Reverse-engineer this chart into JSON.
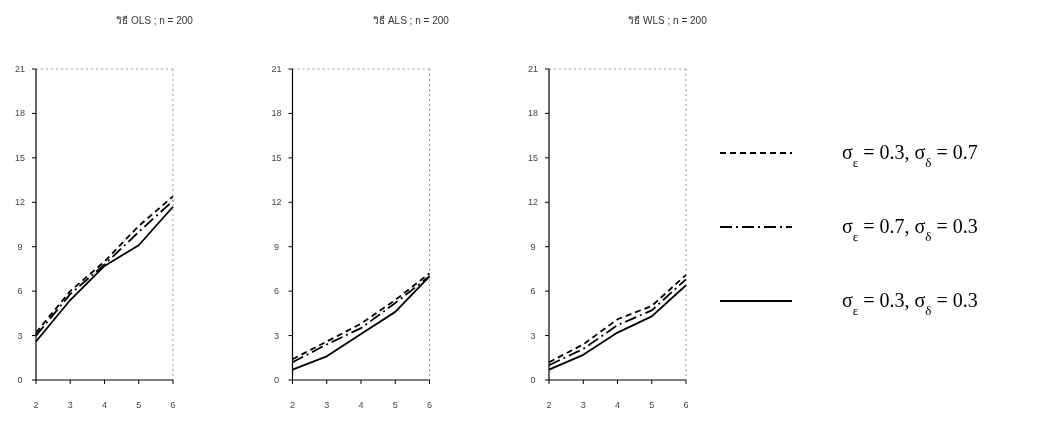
{
  "chart_data": [
    {
      "type": "line",
      "title": "วิธี OLS ; n = 200",
      "x": [
        2,
        3,
        4,
        5,
        6
      ],
      "xlim": [
        2,
        6
      ],
      "xticks": [
        2,
        3,
        4,
        5,
        6
      ],
      "ylim": [
        0,
        21
      ],
      "yticks": [
        0,
        3,
        6,
        9,
        12,
        15,
        18,
        21
      ],
      "legend": false,
      "series": [
        {
          "color": "#000000",
          "line_style": "dashed",
          "values": [
            3.2,
            6.0,
            8.0,
            10.4,
            12.4
          ]
        },
        {
          "color": "#000000",
          "line_style": "dashdot",
          "values": [
            3.0,
            5.8,
            7.8,
            10.0,
            12.1
          ]
        },
        {
          "color": "#000000",
          "line_style": "solid",
          "values": [
            2.6,
            5.4,
            7.7,
            9.1,
            11.7
          ]
        }
      ]
    },
    {
      "type": "line",
      "title": "วิธี ALS ; n = 200",
      "x": [
        2,
        3,
        4,
        5,
        6
      ],
      "xlim": [
        2,
        6
      ],
      "xticks": [
        2,
        3,
        4,
        5,
        6
      ],
      "ylim": [
        0,
        21
      ],
      "yticks": [
        0,
        3,
        6,
        9,
        12,
        15,
        18,
        21
      ],
      "legend": false,
      "series": [
        {
          "color": "#000000",
          "line_style": "dashed",
          "values": [
            1.4,
            2.6,
            3.8,
            5.4,
            7.2
          ]
        },
        {
          "color": "#000000",
          "line_style": "dashdot",
          "values": [
            1.2,
            2.4,
            3.5,
            5.2,
            7.0
          ]
        },
        {
          "color": "#000000",
          "line_style": "solid",
          "values": [
            0.7,
            1.6,
            3.1,
            4.6,
            7.0
          ]
        }
      ]
    },
    {
      "type": "line",
      "title": "วิธี WLS ; n = 200",
      "x": [
        2,
        3,
        4,
        5,
        6
      ],
      "xlim": [
        2,
        6
      ],
      "xticks": [
        2,
        3,
        4,
        5,
        6
      ],
      "ylim": [
        0,
        21
      ],
      "yticks": [
        0,
        3,
        6,
        9,
        12,
        15,
        18,
        21
      ],
      "legend": "right",
      "series": [
        {
          "name": "σ$_{ε}$ = 0.3, σ$_{δ}$ = 0.7",
          "color": "#000000",
          "line_style": "dashed",
          "values": [
            1.2,
            2.4,
            4.1,
            5.0,
            7.1
          ]
        },
        {
          "name": "σ$_{ε}$ = 0.7, σ$_{δ}$ = 0.3",
          "color": "#000000",
          "line_style": "dashdot",
          "values": [
            1.0,
            2.1,
            3.7,
            4.7,
            6.8
          ]
        },
        {
          "name": "σ$_{ε}$ = 0.3, σ$_{δ}$ = 0.3",
          "color": "#000000",
          "line_style": "solid",
          "values": [
            0.7,
            1.7,
            3.2,
            4.3,
            6.4
          ]
        }
      ]
    }
  ]
}
